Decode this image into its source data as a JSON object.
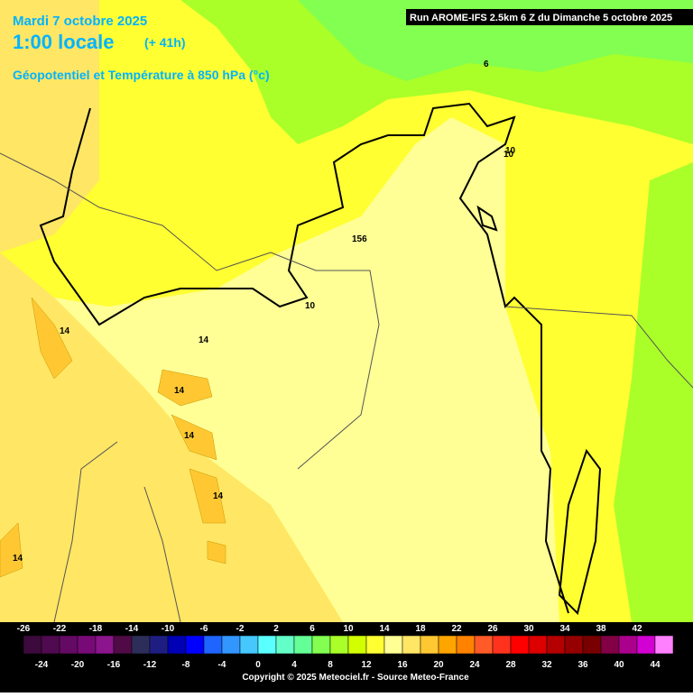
{
  "header": {
    "date": "Mardi 7 octobre 2025",
    "time": "1:00 locale",
    "lead": "(+ 41h)",
    "field": "Géopotentiel et Température à 850 hPa (°c)",
    "run": "Run AROME-IFS 2.5km 6 Z du Dimanche 5 octobre 2025"
  },
  "contour_labels": [
    "6",
    "10",
    "10",
    "156",
    "10",
    "14",
    "14",
    "14",
    "14",
    "14",
    "14"
  ],
  "colorbar": {
    "colors": [
      "#3c0a3c",
      "#500a50",
      "#640a64",
      "#780a78",
      "#8c148c",
      "#500a46",
      "#2d2d5a",
      "#1e1e82",
      "#0000b4",
      "#0000ff",
      "#1e64ff",
      "#3296ff",
      "#46c8ff",
      "#5affff",
      "#64ffc8",
      "#64ff96",
      "#82ff50",
      "#aaff28",
      "#d2ff00",
      "#ffff32",
      "#ffff96",
      "#ffe664",
      "#ffc832",
      "#ffa500",
      "#ff8200",
      "#ff5a28",
      "#ff321e",
      "#ff0000",
      "#dc0000",
      "#b40000",
      "#960000",
      "#780000",
      "#820046",
      "#aa008c",
      "#d200d2",
      "#ff80ff"
    ],
    "top_labels": [
      -26,
      -22,
      -18,
      -14,
      -10,
      -6,
      -2,
      2,
      6,
      10,
      14,
      18,
      22,
      26,
      30,
      34,
      38,
      42
    ],
    "bottom_labels": [
      -24,
      -20,
      -16,
      -12,
      -8,
      -4,
      0,
      4,
      8,
      12,
      16,
      20,
      24,
      28,
      32,
      36,
      40,
      44
    ]
  },
  "footer": {
    "copyright": "Copyright © 2025 Meteociel.fr - Source Meteo-France"
  }
}
